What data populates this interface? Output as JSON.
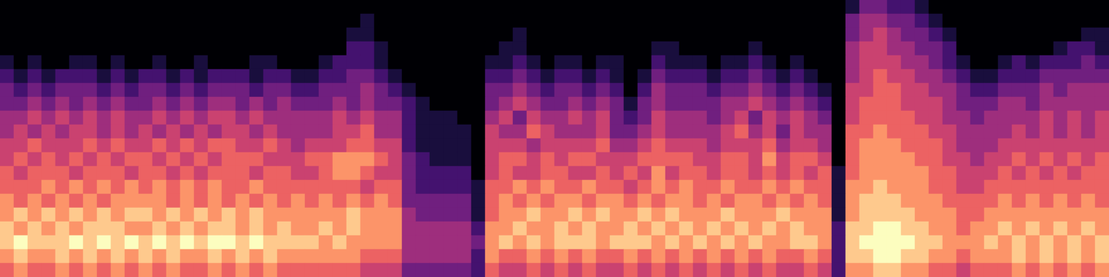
{
  "chart_data": {
    "type": "heatmap",
    "tick_labels": false,
    "zlim": [
      0,
      9
    ],
    "z": [
      [
        0,
        0,
        0,
        0,
        0,
        0,
        0,
        0,
        0,
        0,
        0,
        0,
        0,
        0,
        0,
        0,
        0,
        0,
        0,
        0,
        0,
        0,
        0,
        0,
        0,
        0,
        0,
        0,
        0,
        0,
        0,
        0,
        0,
        0,
        0,
        0,
        0,
        0,
        0,
        0,
        0,
        0,
        0,
        0,
        0,
        0,
        0,
        0,
        0,
        0,
        0,
        0,
        0,
        0,
        0,
        0,
        0,
        0,
        0,
        0,
        0,
        1,
        3,
        3,
        2,
        2,
        1,
        0,
        0,
        0,
        0,
        0,
        0,
        0,
        0,
        0,
        0,
        0,
        0,
        0
      ],
      [
        0,
        0,
        0,
        0,
        0,
        0,
        0,
        0,
        0,
        0,
        0,
        0,
        0,
        0,
        0,
        0,
        0,
        0,
        0,
        0,
        0,
        0,
        0,
        0,
        0,
        0,
        1,
        0,
        0,
        0,
        0,
        0,
        0,
        0,
        0,
        0,
        0,
        0,
        0,
        0,
        0,
        0,
        0,
        0,
        0,
        0,
        0,
        0,
        0,
        0,
        0,
        0,
        0,
        0,
        0,
        0,
        0,
        0,
        0,
        0,
        0,
        3,
        4,
        4,
        3,
        3,
        2,
        1,
        0,
        0,
        0,
        0,
        0,
        0,
        0,
        0,
        0,
        0,
        0,
        0
      ],
      [
        0,
        0,
        0,
        0,
        0,
        0,
        0,
        0,
        0,
        0,
        0,
        0,
        0,
        0,
        0,
        0,
        0,
        0,
        0,
        0,
        0,
        0,
        0,
        0,
        0,
        1,
        1,
        0,
        0,
        0,
        0,
        0,
        0,
        0,
        0,
        0,
        0,
        1,
        0,
        0,
        0,
        0,
        0,
        0,
        0,
        0,
        0,
        0,
        0,
        0,
        0,
        0,
        0,
        0,
        0,
        0,
        0,
        0,
        0,
        0,
        0,
        3,
        4,
        5,
        4,
        3,
        3,
        2,
        1,
        0,
        0,
        0,
        0,
        0,
        0,
        0,
        0,
        0,
        1,
        1
      ],
      [
        0,
        0,
        0,
        0,
        0,
        0,
        0,
        0,
        0,
        0,
        0,
        0,
        0,
        0,
        0,
        0,
        0,
        0,
        0,
        0,
        0,
        0,
        0,
        0,
        0,
        2,
        2,
        1,
        0,
        0,
        0,
        0,
        0,
        0,
        0,
        0,
        1,
        1,
        0,
        0,
        0,
        0,
        0,
        0,
        0,
        0,
        0,
        1,
        1,
        0,
        0,
        0,
        0,
        0,
        1,
        0,
        0,
        0,
        0,
        0,
        0,
        4,
        5,
        5,
        4,
        4,
        3,
        3,
        2,
        0,
        0,
        0,
        0,
        0,
        0,
        0,
        1,
        2,
        2,
        1
      ],
      [
        1,
        0,
        1,
        0,
        0,
        1,
        1,
        0,
        1,
        0,
        0,
        1,
        0,
        0,
        1,
        0,
        0,
        0,
        1,
        1,
        0,
        0,
        0,
        1,
        2,
        2,
        2,
        1,
        0,
        0,
        0,
        0,
        0,
        0,
        0,
        1,
        1,
        2,
        1,
        0,
        1,
        1,
        0,
        1,
        1,
        0,
        0,
        2,
        1,
        1,
        1,
        0,
        1,
        1,
        2,
        1,
        0,
        1,
        0,
        0,
        0,
        4,
        5,
        5,
        5,
        4,
        4,
        3,
        2,
        1,
        0,
        0,
        1,
        2,
        1,
        2,
        2,
        2,
        3,
        2
      ],
      [
        2,
        1,
        2,
        1,
        2,
        2,
        2,
        1,
        2,
        1,
        2,
        2,
        1,
        2,
        1,
        2,
        2,
        2,
        1,
        2,
        2,
        1,
        1,
        2,
        2,
        3,
        3,
        2,
        1,
        0,
        0,
        0,
        0,
        0,
        0,
        2,
        2,
        3,
        2,
        1,
        2,
        2,
        1,
        2,
        1,
        0,
        1,
        3,
        2,
        2,
        2,
        1,
        2,
        2,
        3,
        2,
        1,
        2,
        1,
        0,
        0,
        4,
        5,
        6,
        5,
        5,
        4,
        4,
        3,
        2,
        1,
        1,
        2,
        2,
        2,
        3,
        3,
        3,
        3,
        3
      ],
      [
        3,
        2,
        3,
        2,
        3,
        3,
        3,
        2,
        3,
        2,
        3,
        3,
        2,
        3,
        2,
        3,
        3,
        3,
        2,
        3,
        3,
        2,
        2,
        3,
        3,
        3,
        4,
        3,
        2,
        1,
        0,
        0,
        0,
        0,
        0,
        3,
        3,
        4,
        3,
        2,
        3,
        3,
        2,
        3,
        2,
        0,
        2,
        4,
        3,
        3,
        3,
        2,
        3,
        3,
        4,
        3,
        2,
        3,
        2,
        1,
        0,
        5,
        5,
        6,
        6,
        5,
        5,
        4,
        4,
        3,
        2,
        2,
        3,
        3,
        3,
        4,
        3,
        4,
        4,
        4
      ],
      [
        3,
        3,
        4,
        3,
        4,
        3,
        4,
        3,
        4,
        3,
        3,
        4,
        3,
        4,
        3,
        4,
        4,
        3,
        4,
        3,
        4,
        3,
        3,
        3,
        4,
        3,
        4,
        3,
        3,
        2,
        1,
        0,
        0,
        0,
        0,
        3,
        4,
        5,
        4,
        3,
        3,
        4,
        3,
        4,
        3,
        1,
        3,
        4,
        3,
        3,
        3,
        3,
        4,
        4,
        5,
        4,
        3,
        4,
        3,
        2,
        0,
        5,
        6,
        6,
        6,
        5,
        5,
        5,
        4,
        3,
        3,
        3,
        4,
        4,
        3,
        4,
        4,
        4,
        4,
        4
      ],
      [
        4,
        4,
        5,
        4,
        5,
        4,
        5,
        4,
        5,
        4,
        4,
        5,
        4,
        5,
        4,
        5,
        5,
        4,
        5,
        4,
        4,
        4,
        4,
        4,
        5,
        4,
        5,
        4,
        4,
        2,
        1,
        1,
        1,
        0,
        0,
        4,
        5,
        3,
        5,
        4,
        4,
        5,
        4,
        5,
        3,
        2,
        3,
        5,
        4,
        4,
        4,
        3,
        4,
        5,
        3,
        5,
        4,
        5,
        4,
        3,
        0,
        5,
        6,
        6,
        6,
        6,
        5,
        5,
        4,
        4,
        3,
        4,
        4,
        4,
        4,
        5,
        4,
        5,
        4,
        5
      ],
      [
        4,
        5,
        4,
        5,
        4,
        5,
        5,
        4,
        5,
        4,
        5,
        4,
        5,
        4,
        5,
        4,
        5,
        5,
        4,
        5,
        4,
        4,
        4,
        4,
        5,
        5,
        6,
        4,
        4,
        2,
        1,
        1,
        1,
        1,
        0,
        5,
        4,
        4,
        6,
        5,
        4,
        4,
        4,
        5,
        3,
        3,
        4,
        5,
        4,
        4,
        4,
        4,
        5,
        6,
        4,
        5,
        3,
        5,
        4,
        4,
        0,
        6,
        6,
        7,
        6,
        6,
        6,
        5,
        5,
        4,
        4,
        4,
        4,
        5,
        4,
        5,
        4,
        5,
        4,
        5
      ],
      [
        5,
        5,
        6,
        5,
        5,
        5,
        6,
        5,
        6,
        5,
        5,
        6,
        5,
        6,
        5,
        6,
        6,
        5,
        5,
        6,
        5,
        4,
        5,
        5,
        5,
        6,
        6,
        5,
        5,
        2,
        1,
        1,
        1,
        1,
        0,
        5,
        5,
        5,
        4,
        5,
        5,
        5,
        5,
        6,
        4,
        4,
        5,
        6,
        5,
        5,
        5,
        4,
        5,
        5,
        5,
        6,
        4,
        5,
        5,
        4,
        0,
        6,
        7,
        7,
        7,
        6,
        6,
        6,
        5,
        4,
        4,
        4,
        5,
        5,
        5,
        5,
        5,
        5,
        5,
        5
      ],
      [
        5,
        6,
        5,
        6,
        5,
        6,
        5,
        6,
        5,
        6,
        6,
        5,
        6,
        5,
        6,
        5,
        6,
        6,
        6,
        5,
        5,
        5,
        6,
        6,
        7,
        7,
        7,
        6,
        5,
        3,
        2,
        1,
        1,
        1,
        0,
        5,
        6,
        6,
        5,
        6,
        5,
        6,
        6,
        5,
        5,
        5,
        6,
        6,
        6,
        6,
        5,
        5,
        6,
        6,
        5,
        7,
        5,
        6,
        6,
        5,
        0,
        6,
        7,
        7,
        7,
        7,
        6,
        6,
        5,
        5,
        4,
        5,
        5,
        6,
        5,
        6,
        5,
        6,
        5,
        6
      ],
      [
        6,
        5,
        6,
        6,
        6,
        5,
        6,
        6,
        6,
        5,
        6,
        6,
        5,
        6,
        5,
        6,
        6,
        6,
        5,
        6,
        6,
        5,
        5,
        6,
        7,
        7,
        6,
        5,
        5,
        3,
        2,
        2,
        2,
        2,
        0,
        5,
        6,
        5,
        5,
        6,
        6,
        5,
        5,
        6,
        5,
        6,
        5,
        7,
        5,
        6,
        6,
        5,
        6,
        6,
        5,
        6,
        5,
        6,
        5,
        6,
        1,
        6,
        7,
        7,
        7,
        7,
        7,
        6,
        6,
        5,
        5,
        5,
        6,
        5,
        6,
        5,
        6,
        5,
        6,
        6
      ],
      [
        6,
        6,
        6,
        7,
        6,
        7,
        6,
        7,
        6,
        7,
        6,
        7,
        6,
        7,
        6,
        7,
        6,
        6,
        7,
        6,
        6,
        6,
        6,
        6,
        6,
        6,
        5,
        6,
        6,
        3,
        2,
        2,
        2,
        2,
        1,
        6,
        6,
        7,
        6,
        7,
        6,
        6,
        7,
        6,
        6,
        5,
        6,
        7,
        6,
        7,
        6,
        6,
        7,
        6,
        6,
        7,
        6,
        7,
        6,
        6,
        1,
        7,
        7,
        8,
        7,
        7,
        7,
        6,
        6,
        5,
        5,
        6,
        6,
        6,
        6,
        6,
        6,
        6,
        6,
        6
      ],
      [
        7,
        6,
        7,
        6,
        7,
        6,
        7,
        6,
        7,
        7,
        7,
        7,
        6,
        7,
        6,
        7,
        6,
        7,
        6,
        7,
        6,
        7,
        6,
        7,
        6,
        7,
        6,
        7,
        6,
        3,
        3,
        3,
        3,
        3,
        1,
        6,
        7,
        6,
        7,
        6,
        7,
        7,
        6,
        7,
        7,
        6,
        7,
        6,
        7,
        7,
        6,
        7,
        6,
        7,
        7,
        6,
        7,
        6,
        7,
        6,
        1,
        7,
        8,
        8,
        8,
        7,
        7,
        7,
        6,
        6,
        6,
        6,
        7,
        6,
        7,
        6,
        7,
        6,
        7,
        6
      ],
      [
        7,
        8,
        7,
        8,
        7,
        8,
        7,
        8,
        7,
        8,
        8,
        7,
        8,
        7,
        8,
        7,
        8,
        7,
        8,
        7,
        7,
        7,
        7,
        7,
        7,
        8,
        7,
        7,
        7,
        4,
        3,
        3,
        3,
        3,
        1,
        6,
        7,
        7,
        8,
        7,
        7,
        8,
        7,
        8,
        7,
        7,
        8,
        7,
        8,
        7,
        7,
        7,
        8,
        7,
        7,
        7,
        8,
        7,
        7,
        7,
        1,
        7,
        8,
        8,
        8,
        8,
        7,
        7,
        7,
        6,
        6,
        7,
        7,
        7,
        7,
        7,
        7,
        7,
        7,
        7
      ],
      [
        8,
        7,
        8,
        7,
        8,
        7,
        8,
        8,
        8,
        7,
        7,
        8,
        7,
        8,
        7,
        8,
        8,
        7,
        8,
        7,
        8,
        7,
        7,
        8,
        7,
        8,
        7,
        7,
        7,
        4,
        4,
        4,
        4,
        4,
        2,
        7,
        7,
        8,
        7,
        7,
        8,
        7,
        8,
        7,
        7,
        8,
        7,
        8,
        7,
        8,
        7,
        8,
        7,
        8,
        7,
        8,
        7,
        8,
        7,
        7,
        2,
        8,
        8,
        9,
        9,
        8,
        8,
        7,
        7,
        6,
        7,
        7,
        8,
        7,
        8,
        7,
        8,
        7,
        8,
        7
      ],
      [
        8,
        9,
        8,
        8,
        8,
        9,
        8,
        9,
        8,
        9,
        8,
        9,
        8,
        9,
        8,
        9,
        9,
        8,
        9,
        8,
        8,
        8,
        8,
        7,
        8,
        7,
        7,
        7,
        7,
        4,
        4,
        4,
        4,
        4,
        3,
        7,
        8,
        7,
        8,
        7,
        8,
        8,
        8,
        7,
        8,
        8,
        8,
        7,
        8,
        7,
        8,
        7,
        8,
        7,
        8,
        7,
        7,
        8,
        8,
        7,
        2,
        8,
        9,
        9,
        9,
        9,
        8,
        8,
        7,
        7,
        7,
        8,
        7,
        8,
        7,
        8,
        7,
        8,
        7,
        8
      ],
      [
        7,
        8,
        7,
        7,
        8,
        7,
        8,
        7,
        8,
        7,
        8,
        7,
        8,
        7,
        7,
        8,
        7,
        8,
        7,
        8,
        7,
        7,
        7,
        7,
        7,
        7,
        6,
        6,
        6,
        4,
        4,
        4,
        4,
        4,
        2,
        7,
        6,
        6,
        7,
        6,
        7,
        6,
        7,
        6,
        6,
        7,
        6,
        7,
        6,
        7,
        6,
        7,
        6,
        7,
        6,
        7,
        6,
        6,
        7,
        6,
        2,
        8,
        8,
        9,
        9,
        8,
        8,
        7,
        7,
        6,
        7,
        7,
        7,
        8,
        7,
        8,
        7,
        8,
        7,
        8
      ],
      [
        6,
        7,
        6,
        6,
        7,
        6,
        7,
        6,
        7,
        6,
        7,
        6,
        7,
        6,
        6,
        7,
        6,
        7,
        6,
        7,
        6,
        6,
        6,
        6,
        6,
        6,
        5,
        5,
        5,
        3,
        3,
        3,
        3,
        3,
        2,
        6,
        5,
        5,
        6,
        5,
        6,
        5,
        6,
        5,
        5,
        6,
        5,
        6,
        5,
        6,
        5,
        6,
        5,
        6,
        5,
        6,
        5,
        5,
        6,
        5,
        2,
        7,
        7,
        8,
        8,
        7,
        7,
        6,
        6,
        5,
        6,
        6,
        6,
        7,
        6,
        7,
        6,
        7,
        6,
        7
      ]
    ]
  }
}
